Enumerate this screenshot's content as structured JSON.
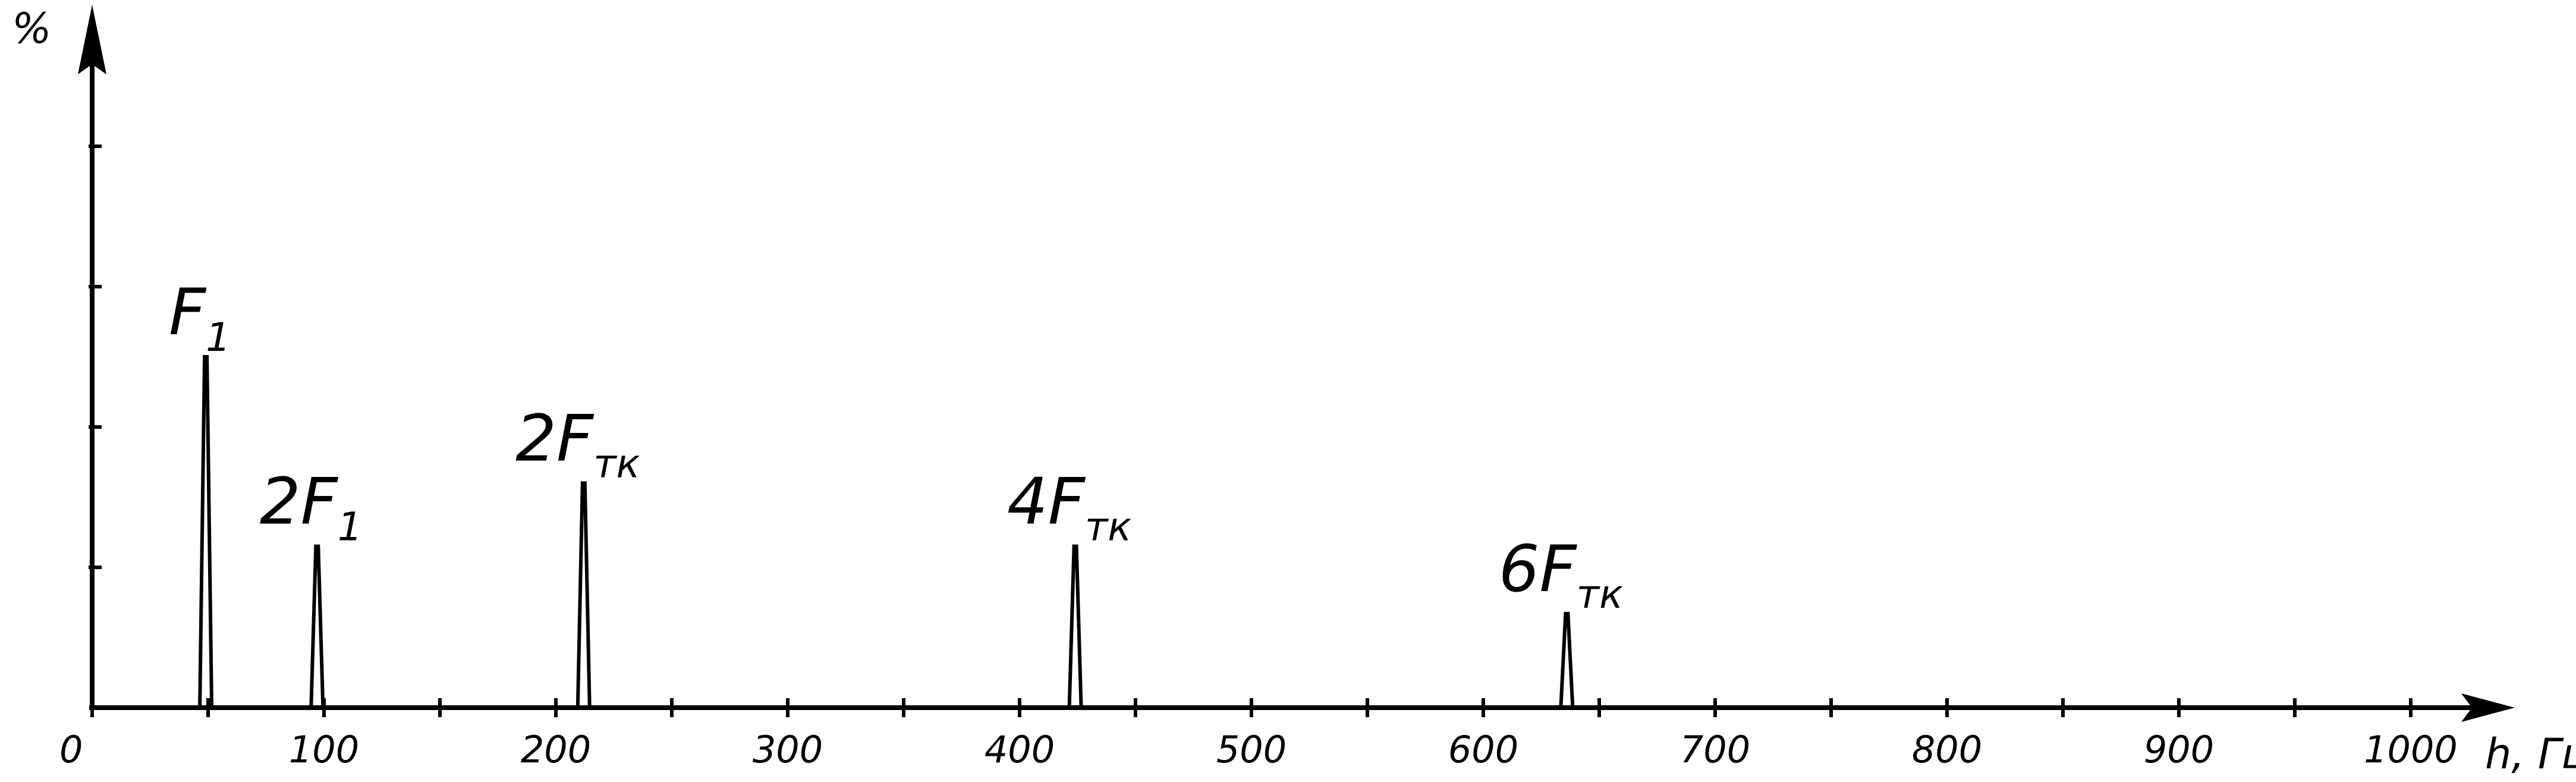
{
  "chart_data": {
    "type": "line",
    "title": "",
    "xlabel": "h, Гц",
    "ylabel": "%",
    "xlim": [
      0,
      1040
    ],
    "ylim": [
      0,
      5
    ],
    "grid": false,
    "x_ticks": [
      0,
      50,
      100,
      150,
      200,
      250,
      300,
      350,
      400,
      450,
      500,
      550,
      600,
      650,
      700,
      750,
      800,
      850,
      900,
      950,
      1000
    ],
    "x_tick_labels": [
      "0",
      "100",
      "200",
      "300",
      "400",
      "500",
      "600",
      "700",
      "800",
      "900",
      "1000"
    ],
    "x_tick_label_values": [
      0,
      100,
      200,
      300,
      400,
      500,
      600,
      700,
      800,
      900,
      1000
    ],
    "y_ticks": [
      1,
      2,
      3,
      4
    ],
    "peaks": [
      {
        "x": 49,
        "y": 2.5,
        "label": "F",
        "sub": "1"
      },
      {
        "x": 97,
        "y": 1.15,
        "label": "2F",
        "sub": "1"
      },
      {
        "x": 212,
        "y": 1.6,
        "label": "2F",
        "sub": "тк"
      },
      {
        "x": 424,
        "y": 1.15,
        "label": "4F",
        "sub": "тк"
      },
      {
        "x": 636,
        "y": 0.67,
        "label": "6F",
        "sub": "тк"
      }
    ]
  }
}
